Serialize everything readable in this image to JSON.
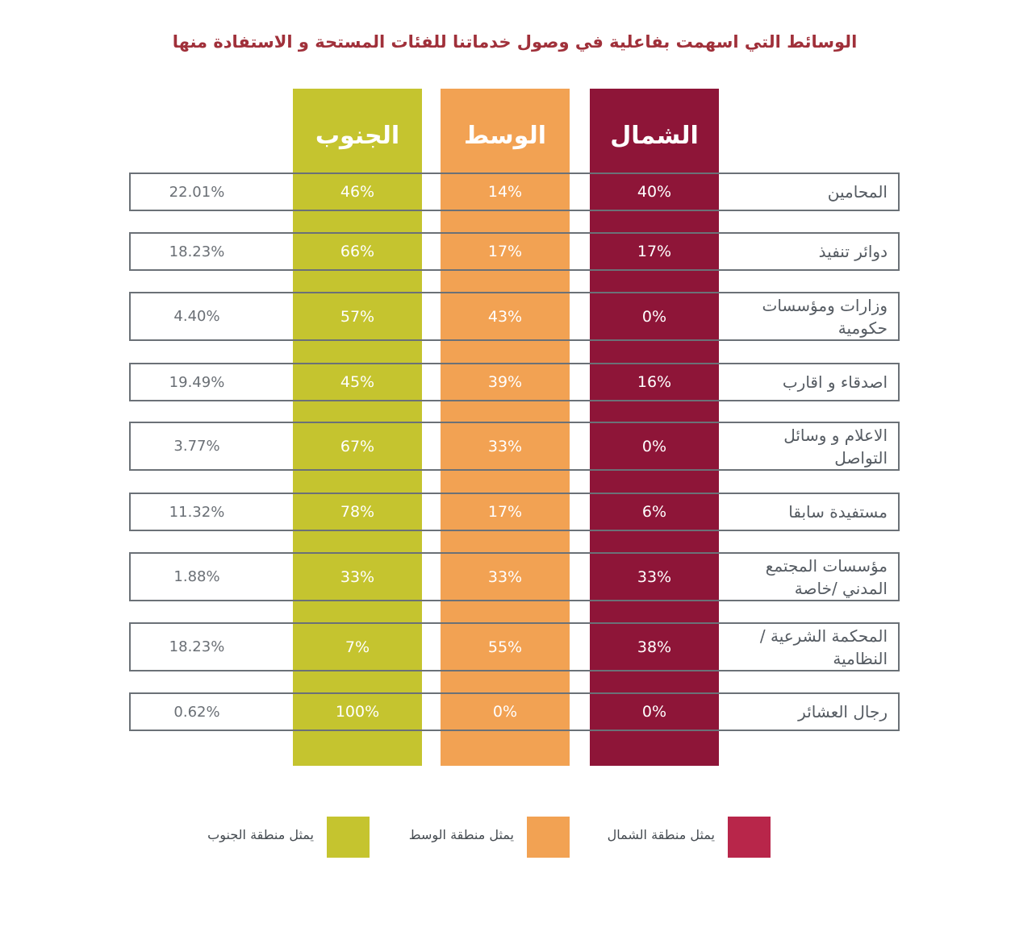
{
  "title": "الوسائط التي اسهمت بفاعلية في وصول خدماتنا للفئات المستحة و الاستفادة منها",
  "colors": {
    "north": "#8e1538",
    "center": "#f2a253",
    "south": "#c5c42f",
    "north_legend": "#b8264a"
  },
  "legend": [
    {
      "key": "north",
      "label": "يمثل منطقة الشمال"
    },
    {
      "key": "center",
      "label": "يمثل منطقة الوسط"
    },
    {
      "key": "south",
      "label": "يمثل منطقة الجنوب"
    }
  ],
  "chart_data": {
    "type": "table",
    "columns": [
      "الشمال",
      "الوسط",
      "الجنوب"
    ],
    "rows": [
      {
        "label": "المحامين",
        "north": "40%",
        "center": "14%",
        "south": "46%",
        "total": "22.01%"
      },
      {
        "label": "دوائر تنفيذ",
        "north": "17%",
        "center": "17%",
        "south": "66%",
        "total": "18.23%"
      },
      {
        "label": "وزارات ومؤسسات حكومية",
        "north": "0%",
        "center": "43%",
        "south": "57%",
        "total": "4.40%"
      },
      {
        "label": "اصدقاء و اقارب",
        "north": "16%",
        "center": "39%",
        "south": "45%",
        "total": "19.49%"
      },
      {
        "label": "الاعلام و وسائل التواصل",
        "north": "0%",
        "center": "33%",
        "south": "67%",
        "total": "3.77%"
      },
      {
        "label": "مستفيدة سابقا",
        "north": "6%",
        "center": "17%",
        "south": "78%",
        "total": "11.32%"
      },
      {
        "label": "مؤسسات المجتمع المدني /خاصة",
        "north": "33%",
        "center": "33%",
        "south": "33%",
        "total": "1.88%"
      },
      {
        "label": "المحكمة الشرعية / النظامية",
        "north": "38%",
        "center": "55%",
        "south": "7%",
        "total": "18.23%"
      },
      {
        "label": "رجال العشائر",
        "north": "0%",
        "center": "0%",
        "south": "100%",
        "total": "0.62%"
      }
    ]
  }
}
